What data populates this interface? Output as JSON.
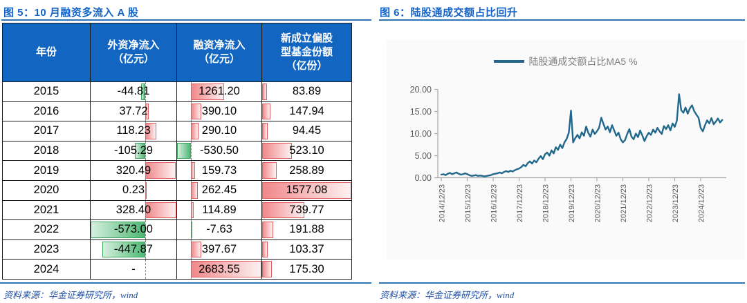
{
  "fig5": {
    "title": "图 5：10 月融资多流入 A 股",
    "source": "资料来源：华金证券研究所，wind"
  },
  "fig6": {
    "title": "图 6：陆股通成交额占比回升",
    "legend": "陆股通成交额占比MA5 %",
    "source": "资料来源：华金证券研究所，wind"
  },
  "colors": {
    "title_blue": "#1464c8",
    "header_blue": "#1266c2",
    "rule_blue": "#2e74b5",
    "source_blue": "#1e4fa6",
    "bar_red_fill": "#f0878a",
    "bar_red_border": "#e25d60",
    "bar_green_fill": "#4eb873",
    "bar_green_border": "#3aa55d",
    "line_teal": "#21688c",
    "panel_bg": "#fafafa",
    "axis_gray": "#a6a6a6",
    "label_gray": "#595959",
    "legend_gray": "#7f7f7f"
  },
  "chart_data": [
    {
      "type": "table",
      "title": "10 月融资多流入 A 股",
      "columns": [
        "年份",
        "外资净流入\n（亿元）",
        "融资净流入\n（亿元）",
        "新成立偏股\n型基金份额\n（亿份）"
      ],
      "null_display": "-",
      "rows": [
        {
          "year": "2015",
          "foreign": -44.81,
          "margin": 1261.2,
          "fund": 83.89
        },
        {
          "year": "2016",
          "foreign": 37.72,
          "margin": 390.1,
          "fund": 147.94
        },
        {
          "year": "2017",
          "foreign": 118.23,
          "margin": 290.1,
          "fund": 94.45
        },
        {
          "year": "2018",
          "foreign": -105.29,
          "margin": -530.5,
          "fund": 523.1
        },
        {
          "year": "2019",
          "foreign": 320.49,
          "margin": 159.73,
          "fund": 258.89
        },
        {
          "year": "2020",
          "foreign": 0.23,
          "margin": 262.45,
          "fund": 1577.08
        },
        {
          "year": "2021",
          "foreign": 328.4,
          "margin": 114.89,
          "fund": 739.77
        },
        {
          "year": "2022",
          "foreign": -573.0,
          "margin": -7.63,
          "fund": 191.88
        },
        {
          "year": "2023",
          "foreign": -447.87,
          "margin": 397.67,
          "fund": 103.37
        },
        {
          "year": "2024",
          "foreign": null,
          "margin": 2683.55,
          "fund": 175.3
        }
      ],
      "bar_style": "excel-gradient-databar",
      "bar_positive_color": "red",
      "bar_negative_color": "green"
    },
    {
      "type": "line",
      "title": "陆股通成交额占比回升",
      "legend": [
        "陆股通成交额占比MA5 %"
      ],
      "legend_position": "top-center",
      "grid": false,
      "ylim": [
        0,
        20
      ],
      "ytick_labels": [
        "20.00",
        "15.00",
        "10.00",
        "5.00",
        "0.00"
      ],
      "xtick_labels": [
        "2014/12/23",
        "2015/12/23",
        "2016/12/23",
        "2017/12/23",
        "2018/12/23",
        "2019/12/23",
        "2020/12/23",
        "2021/12/23",
        "2022/12/23",
        "2023/12/23",
        "2024/12/23"
      ],
      "series": [
        {
          "name": "陆股通成交额占比MA5 %",
          "start": "2014-12",
          "step_months": 1,
          "values": [
            0.7,
            0.8,
            0.6,
            0.9,
            1.1,
            0.8,
            1.0,
            1.2,
            0.9,
            0.7,
            0.8,
            1.0,
            0.8,
            0.6,
            0.4,
            0.5,
            0.6,
            0.4,
            0.5,
            0.4,
            0.3,
            0.4,
            0.5,
            0.6,
            0.8,
            0.9,
            1.0,
            1.2,
            1.0,
            1.3,
            1.5,
            1.3,
            1.6,
            1.4,
            1.7,
            1.9,
            2.1,
            2.4,
            2.9,
            2.6,
            3.3,
            3.7,
            3.2,
            3.9,
            3.5,
            4.3,
            4.9,
            4.2,
            5.3,
            5.7,
            5.0,
            6.2,
            5.5,
            6.9,
            6.3,
            7.5,
            6.7,
            8.0,
            8.8,
            10.2,
            15.2,
            8.0,
            9.0,
            9.7,
            8.9,
            10.3,
            9.5,
            11.6,
            10.2,
            9.3,
            10.9,
            9.9,
            10.5,
            11.3,
            13.6,
            12.2,
            10.9,
            11.6,
            10.3,
            11.9,
            10.7,
            9.5,
            10.2,
            8.7,
            8.0,
            8.5,
            9.9,
            11.0,
            9.3,
            8.7,
            10.0,
            9.2,
            10.7,
            9.6,
            8.3,
            9.4,
            10.2,
            9.7,
            10.9,
            10.2,
            11.3,
            10.5,
            9.9,
            11.7,
            11.0,
            11.9,
            10.7,
            12.3,
            11.5,
            12.9,
            18.9,
            15.3,
            14.7,
            15.9,
            14.5,
            15.7,
            16.4,
            15.1,
            14.3,
            13.6,
            11.3,
            10.5,
            11.9,
            13.0,
            12.3,
            13.5,
            12.1,
            12.7,
            13.4,
            12.5,
            13.1
          ]
        }
      ]
    }
  ]
}
